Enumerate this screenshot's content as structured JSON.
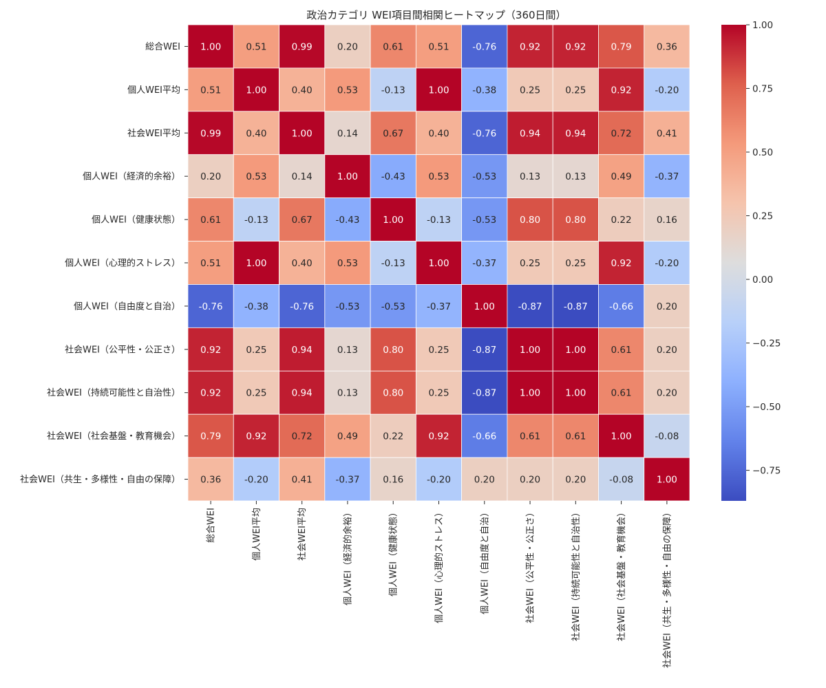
{
  "chart_data": {
    "type": "heatmap",
    "title": "政治カテゴリ WEI項目間相関ヒートマップ（360日間）",
    "row_labels": [
      "総合WEI",
      "個人WEI平均",
      "社会WEI平均",
      "個人WEI（経済的余裕）",
      "個人WEI（健康状態）",
      "個人WEI（心理的ストレス）",
      "個人WEI（自由度と自治）",
      "社会WEI（公平性・公正さ）",
      "社会WEI（持続可能性と自治性）",
      "社会WEI（社会基盤・教育機会）",
      "社会WEI（共生・多様性・自由の保障）"
    ],
    "col_labels": [
      "総合WEI",
      "個人WEI平均",
      "社会WEI平均",
      "個人WEI（経済的余裕）",
      "個人WEI（健康状態）",
      "個人WEI（心理的ストレス）",
      "個人WEI（自由度と自治）",
      "社会WEI（公平性・公正さ）",
      "社会WEI（持続可能性と自治性）",
      "社会WEI（社会基盤・教育機会）",
      "社会WEI（共生・多様性・自由の保障）"
    ],
    "values": [
      [
        1.0,
        0.51,
        0.99,
        0.2,
        0.61,
        0.51,
        -0.76,
        0.92,
        0.92,
        0.79,
        0.36
      ],
      [
        0.51,
        1.0,
        0.4,
        0.53,
        -0.13,
        1.0,
        -0.38,
        0.25,
        0.25,
        0.92,
        -0.2
      ],
      [
        0.99,
        0.4,
        1.0,
        0.14,
        0.67,
        0.4,
        -0.76,
        0.94,
        0.94,
        0.72,
        0.41
      ],
      [
        0.2,
        0.53,
        0.14,
        1.0,
        -0.43,
        0.53,
        -0.53,
        0.13,
        0.13,
        0.49,
        -0.37
      ],
      [
        0.61,
        -0.13,
        0.67,
        -0.43,
        1.0,
        -0.13,
        -0.53,
        0.8,
        0.8,
        0.22,
        0.16
      ],
      [
        0.51,
        1.0,
        0.4,
        0.53,
        -0.13,
        1.0,
        -0.37,
        0.25,
        0.25,
        0.92,
        -0.2
      ],
      [
        -0.76,
        -0.38,
        -0.76,
        -0.53,
        -0.53,
        -0.37,
        1.0,
        -0.87,
        -0.87,
        -0.66,
        0.2
      ],
      [
        0.92,
        0.25,
        0.94,
        0.13,
        0.8,
        0.25,
        -0.87,
        1.0,
        1.0,
        0.61,
        0.2
      ],
      [
        0.92,
        0.25,
        0.94,
        0.13,
        0.8,
        0.25,
        -0.87,
        1.0,
        1.0,
        0.61,
        0.2
      ],
      [
        0.79,
        0.92,
        0.72,
        0.49,
        0.22,
        0.92,
        -0.66,
        0.61,
        0.61,
        1.0,
        -0.08
      ],
      [
        0.36,
        -0.2,
        0.41,
        -0.37,
        0.16,
        -0.2,
        0.2,
        0.2,
        0.2,
        -0.08,
        1.0
      ]
    ],
    "value_format": "0.00",
    "colormap": "coolwarm",
    "vmin": -0.87,
    "vmax": 1.0,
    "colorbar_ticks": [
      1.0,
      0.75,
      0.5,
      0.25,
      0.0,
      -0.25,
      -0.5,
      -0.75
    ],
    "colorbar_tick_labels": [
      "1.00",
      "0.75",
      "0.50",
      "0.25",
      "0.00",
      "−0.25",
      "−0.50",
      "−0.75"
    ],
    "colors": {
      "low": "#3b4cc0",
      "mid": "#dddddd",
      "high": "#b40426",
      "cell_border": "#ffffff",
      "text": "#262626"
    }
  }
}
